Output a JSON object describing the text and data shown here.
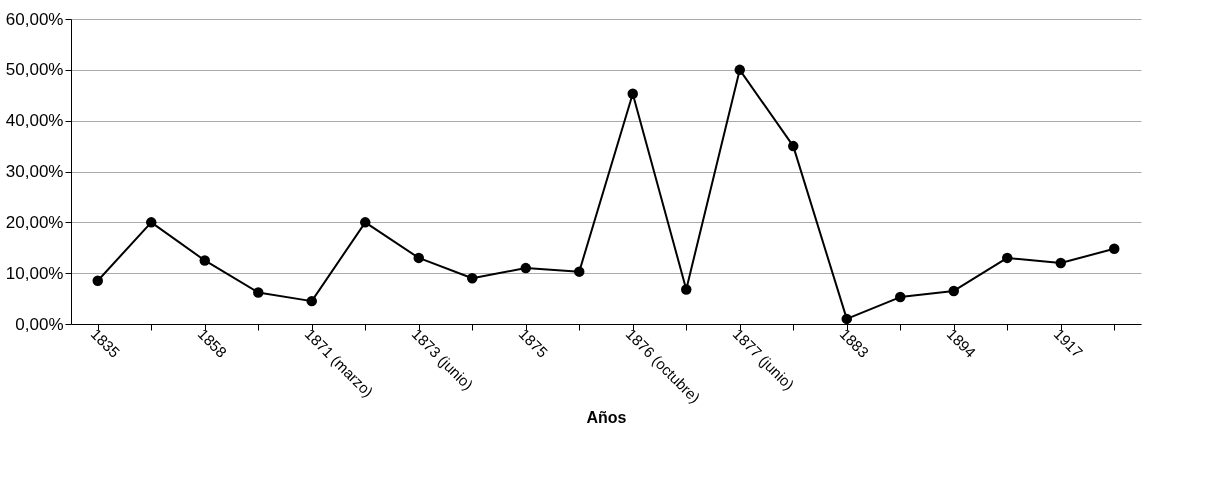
{
  "chart_data": {
    "type": "line",
    "xlabel": "Años",
    "categories": [
      "1835",
      null,
      "1858",
      null,
      "1871 (marzo)",
      null,
      "1873 (junio)",
      null,
      "1875",
      null,
      "1876 (octubre)",
      null,
      "1877 (junio)",
      null,
      "1883",
      null,
      "1894",
      null,
      "1917",
      null
    ],
    "series": [
      {
        "color": "#000000",
        "values": [
          8.5,
          20,
          12.5,
          6.2,
          4.5,
          20,
          13,
          9,
          11,
          10.3,
          45.3,
          6.8,
          50,
          35,
          1,
          5.3,
          6.5,
          13,
          12,
          14.8
        ]
      }
    ],
    "ylim": [
      0,
      60
    ],
    "yticks": [
      {
        "value": 0,
        "label": "0,00%"
      },
      {
        "value": 10,
        "label": "10,00%"
      },
      {
        "value": 20,
        "label": "20,00%"
      },
      {
        "value": 30,
        "label": "30,00%"
      },
      {
        "value": 40,
        "label": "40,00%"
      },
      {
        "value": 50,
        "label": "50,00%"
      },
      {
        "value": 60,
        "label": "60,00%"
      }
    ],
    "grid": "y",
    "marker": "circle",
    "line_style": "solid"
  }
}
